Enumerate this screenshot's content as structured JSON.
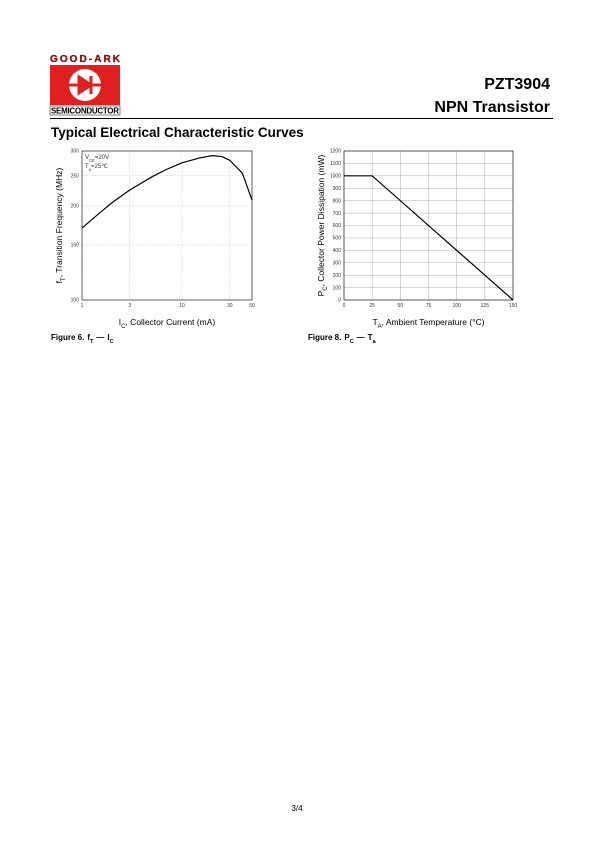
{
  "header": {
    "logo_top": "GOOD-ARK",
    "logo_bottom": "SEMICONDUCTOR",
    "part": "PZT3904",
    "description": "NPN Transistor"
  },
  "section_title": "Typical Electrical Characteristic Curves",
  "charts": [
    {
      "type": "line",
      "x_scale": "log",
      "y_scale": "log",
      "xlim": [
        1,
        50
      ],
      "xticks": [
        1,
        3,
        10,
        30,
        50
      ],
      "ylim": [
        100,
        300
      ],
      "yticks": [
        100,
        150,
        200,
        250,
        300
      ],
      "grid": true,
      "x": [
        1,
        1.5,
        2,
        3,
        5,
        7,
        10,
        15,
        20,
        25,
        30,
        40,
        50
      ],
      "series": [
        {
          "color": "#000000",
          "values": [
            170,
            190,
            205,
            225,
            248,
            262,
            275,
            285,
            290,
            288,
            280,
            255,
            209
          ]
        }
      ],
      "annotations": [
        {
          "main": "V",
          "sub": "CE",
          "rest": "=20V"
        },
        {
          "main": "T",
          "sub": "a",
          "rest": "=25℃"
        }
      ],
      "x_label": {
        "main": "I",
        "sub": "C",
        "rest": ", Collector Current (mA)"
      },
      "y_label": {
        "main": "f",
        "sub": "T",
        "rest": ", Transition Frequency (MHz)"
      },
      "caption": {
        "label": "Figure 6.",
        "a": "f",
        "a_sub": "T",
        "dash": "—",
        "b": "I",
        "b_sub": "C"
      }
    },
    {
      "type": "line",
      "x_scale": "linear",
      "y_scale": "linear",
      "xlim": [
        0,
        150
      ],
      "xticks": [
        0,
        25,
        50,
        75,
        100,
        125,
        150
      ],
      "ylim": [
        0,
        1200
      ],
      "yticks": [
        0,
        100,
        200,
        300,
        400,
        500,
        600,
        700,
        800,
        900,
        1000,
        1100,
        1200
      ],
      "grid": true,
      "x": [
        0,
        25,
        150
      ],
      "series": [
        {
          "color": "#000000",
          "values": [
            1000,
            1000,
            0
          ]
        }
      ],
      "annotations": [],
      "x_label": {
        "main": "T",
        "sub": "A",
        "rest": ", Ambient Temperature (°C)"
      },
      "y_label": {
        "main": "P",
        "sub": "C",
        "rest": ", Collector Power Dissipation (mW)"
      },
      "caption": {
        "label": "Figure 8.",
        "a": "P",
        "a_sub": "C",
        "dash": "—",
        "b": "T",
        "b_sub": "a"
      }
    }
  ],
  "page_number": "3/4"
}
